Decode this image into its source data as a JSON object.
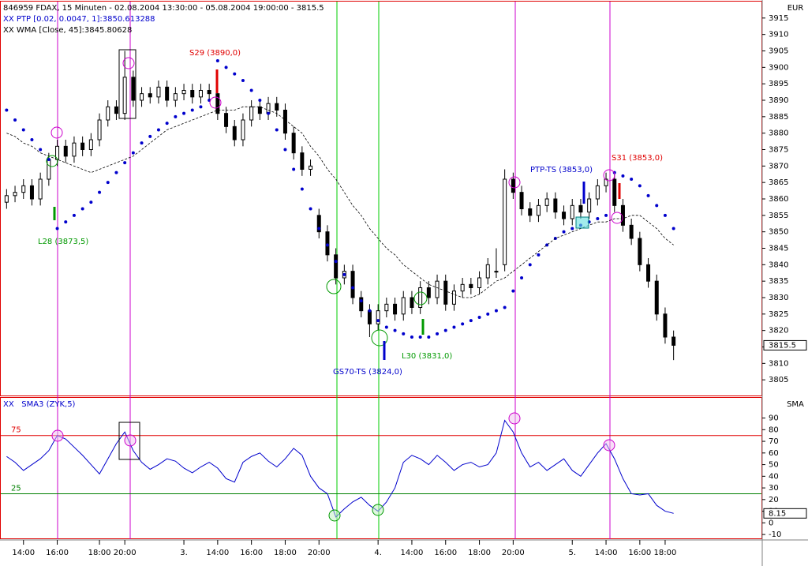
{
  "chart_data": [
    {
      "type": "candlestick",
      "title": "846959 FDAX, 15 Minuten - 02.08.2004 13:30:00 - 05.08.2004 19:00:00 - 3815.5",
      "y_unit": "EUR",
      "ylim": [
        3800,
        3920
      ],
      "yticks": [
        3805,
        3810,
        3815,
        3820,
        3825,
        3830,
        3835,
        3840,
        3845,
        3850,
        3855,
        3860,
        3865,
        3870,
        3875,
        3880,
        3885,
        3890,
        3895,
        3900,
        3905,
        3910,
        3915
      ],
      "candles": {
        "color": "#000000",
        "open": [
          3859,
          3861,
          3862,
          3864,
          3860,
          3866,
          3872,
          3876,
          3873,
          3877,
          3875,
          3878,
          3884,
          3888,
          3886,
          3897,
          3890,
          3892,
          3891,
          3894,
          3890,
          3892,
          3893,
          3891,
          3893,
          3892,
          3886,
          3882,
          3878,
          3884,
          3888,
          3886,
          3889,
          3887,
          3880,
          3874,
          3869,
          3855,
          3850,
          3843,
          3836,
          3838,
          3830,
          3826,
          3822,
          3826,
          3828,
          3825,
          3830,
          3827,
          3833,
          3830,
          3835,
          3828,
          3832,
          3834,
          3833,
          3836,
          3838,
          3840,
          3866,
          3862,
          3857,
          3855,
          3858,
          3860,
          3856,
          3854,
          3858,
          3856,
          3860,
          3864,
          3866,
          3858,
          3852,
          3848,
          3840,
          3835,
          3825,
          3818
        ],
        "high": [
          3863,
          3864,
          3866,
          3866,
          3868,
          3874,
          3878,
          3878,
          3879,
          3879,
          3880,
          3886,
          3890,
          3890,
          3905,
          3899,
          3894,
          3894,
          3896,
          3896,
          3894,
          3895,
          3895,
          3895,
          3895,
          3894,
          3888,
          3884,
          3886,
          3890,
          3890,
          3891,
          3891,
          3889,
          3882,
          3876,
          3872,
          3857,
          3852,
          3845,
          3840,
          3840,
          3832,
          3828,
          3828,
          3830,
          3830,
          3832,
          3832,
          3835,
          3835,
          3837,
          3837,
          3834,
          3836,
          3836,
          3838,
          3842,
          3845,
          3869,
          3868,
          3864,
          3859,
          3860,
          3862,
          3862,
          3858,
          3860,
          3860,
          3862,
          3866,
          3868,
          3868,
          3860,
          3854,
          3850,
          3842,
          3837,
          3827,
          3820
        ],
        "low": [
          3857,
          3859,
          3860,
          3858,
          3858,
          3864,
          3870,
          3871,
          3871,
          3873,
          3873,
          3876,
          3882,
          3884,
          3884,
          3888,
          3888,
          3889,
          3889,
          3888,
          3888,
          3890,
          3889,
          3889,
          3890,
          3884,
          3880,
          3876,
          3876,
          3882,
          3884,
          3884,
          3885,
          3878,
          3872,
          3867,
          3867,
          3848,
          3841,
          3834,
          3834,
          3828,
          3824,
          3818,
          3820,
          3824,
          3823,
          3823,
          3825,
          3825,
          3828,
          3828,
          3826,
          3826,
          3830,
          3831,
          3831,
          3834,
          3836,
          3838,
          3860,
          3855,
          3853,
          3853,
          3856,
          3854,
          3852,
          3852,
          3854,
          3854,
          3858,
          3862,
          3856,
          3850,
          3846,
          3838,
          3833,
          3823,
          3816,
          3811
        ],
        "close": [
          3861,
          3862,
          3864,
          3860,
          3866,
          3872,
          3876,
          3873,
          3877,
          3875,
          3878,
          3884,
          3888,
          3886,
          3897,
          3890,
          3892,
          3891,
          3894,
          3890,
          3892,
          3893,
          3891,
          3893,
          3892,
          3886,
          3882,
          3878,
          3884,
          3888,
          3886,
          3889,
          3887,
          3880,
          3874,
          3869,
          3870,
          3850,
          3843,
          3836,
          3838,
          3830,
          3826,
          3822,
          3826,
          3828,
          3825,
          3830,
          3827,
          3833,
          3830,
          3835,
          3828,
          3832,
          3834,
          3833,
          3836,
          3840,
          3838,
          3866,
          3862,
          3857,
          3855,
          3858,
          3860,
          3856,
          3854,
          3858,
          3856,
          3860,
          3864,
          3866,
          3858,
          3852,
          3848,
          3840,
          3835,
          3825,
          3818,
          3815.5
        ]
      },
      "series": [
        {
          "name": "XX PTP [0.02, 0.0047, 1]:3850.613288",
          "color": "#0000cc",
          "style": "dots",
          "values": [
            3887,
            3884,
            3881,
            3878,
            3875,
            3872,
            3851,
            3853,
            3855,
            3857,
            3859,
            3862,
            3865,
            3868,
            3871,
            3874,
            3877,
            3879,
            3881,
            3883,
            3885,
            3886,
            3887,
            3888,
            3890,
            3902,
            3900,
            3898,
            3896,
            3893,
            3890,
            3886,
            3881,
            3875,
            3869,
            3863,
            3857,
            3851,
            3846,
            3841,
            3837,
            3833,
            3829,
            3826,
            3823,
            3821,
            3820,
            3819,
            3818,
            3818,
            3818,
            3819,
            3820,
            3821,
            3822,
            3823,
            3824,
            3825,
            3826,
            3827,
            3832,
            3836,
            3840,
            3843,
            3846,
            3848,
            3850,
            3851,
            3852,
            3853,
            3854,
            3855,
            3868,
            3867,
            3866,
            3864,
            3861,
            3858,
            3855,
            3851
          ]
        },
        {
          "name": "XX WMA [Close, 45]:3845.80628",
          "color": "#000000",
          "style": "dashed",
          "values": [
            3880,
            3879,
            3877,
            3876,
            3874,
            3873,
            3872,
            3871,
            3870,
            3869,
            3868,
            3869,
            3870,
            3871,
            3872,
            3873,
            3875,
            3877,
            3879,
            3881,
            3882,
            3883,
            3884,
            3885,
            3886,
            3887,
            3887,
            3887,
            3888,
            3888,
            3888,
            3887,
            3886,
            3884,
            3882,
            3880,
            3876,
            3873,
            3869,
            3866,
            3862,
            3858,
            3855,
            3851,
            3848,
            3845,
            3843,
            3840,
            3838,
            3836,
            3834,
            3833,
            3832,
            3831,
            3830,
            3830,
            3831,
            3833,
            3835,
            3836,
            3838,
            3840,
            3842,
            3844,
            3846,
            3848,
            3849,
            3850,
            3851,
            3852,
            3853,
            3853,
            3854,
            3854,
            3855,
            3855,
            3853,
            3851,
            3848,
            3846
          ]
        }
      ],
      "annotations": [
        "S29 (3890,0)",
        "L28 (3873,5)",
        "GS70-TS (3824,0)",
        "L30 (3831,0)",
        "PTP-TS (3853,0)",
        "S31 (3853,0)"
      ]
    },
    {
      "type": "line",
      "y_unit": "SMA",
      "ylim": [
        -14,
        108
      ],
      "yticks": [
        -10,
        0,
        10,
        20,
        30,
        40,
        50,
        60,
        70,
        80,
        90
      ],
      "levels": [
        75,
        25
      ],
      "level_colors": [
        "#e00000",
        "#008000"
      ],
      "categories": [
        null,
        null,
        "14:00",
        null,
        null,
        null,
        "16:00",
        null,
        null,
        null,
        null,
        "18:00",
        null,
        null,
        "20:00",
        null,
        null,
        null,
        null,
        null,
        null,
        "3.",
        null,
        null,
        null,
        "14:00",
        null,
        null,
        null,
        "16:00",
        null,
        null,
        null,
        "18:00",
        null,
        null,
        null,
        "20:00",
        null,
        null,
        null,
        null,
        null,
        null,
        "4.",
        null,
        null,
        null,
        "14:00",
        null,
        null,
        null,
        "16:00",
        null,
        null,
        null,
        "18:00",
        null,
        null,
        null,
        "20:00",
        null,
        null,
        null,
        null,
        null,
        null,
        "5.",
        null,
        null,
        null,
        "14:00",
        null,
        null,
        null,
        "16:00",
        null,
        null,
        "18:00",
        null
      ],
      "series": [
        {
          "name": "XX   SMA3 (ZYK,5)",
          "color": "#0000cc",
          "values": [
            57,
            52,
            45,
            50,
            55,
            62,
            75,
            72,
            65,
            58,
            50,
            42,
            55,
            68,
            78,
            62,
            52,
            46,
            50,
            55,
            53,
            47,
            43,
            48,
            52,
            47,
            38,
            35,
            52,
            57,
            60,
            53,
            48,
            55,
            64,
            58,
            40,
            30,
            25,
            5,
            12,
            18,
            22,
            15,
            10,
            18,
            30,
            52,
            58,
            55,
            50,
            58,
            52,
            45,
            50,
            52,
            48,
            50,
            60,
            88,
            78,
            60,
            48,
            52,
            45,
            50,
            55,
            45,
            40,
            50,
            60,
            68,
            55,
            38,
            25,
            24,
            25,
            15,
            10,
            8.15
          ]
        }
      ]
    }
  ]
}
